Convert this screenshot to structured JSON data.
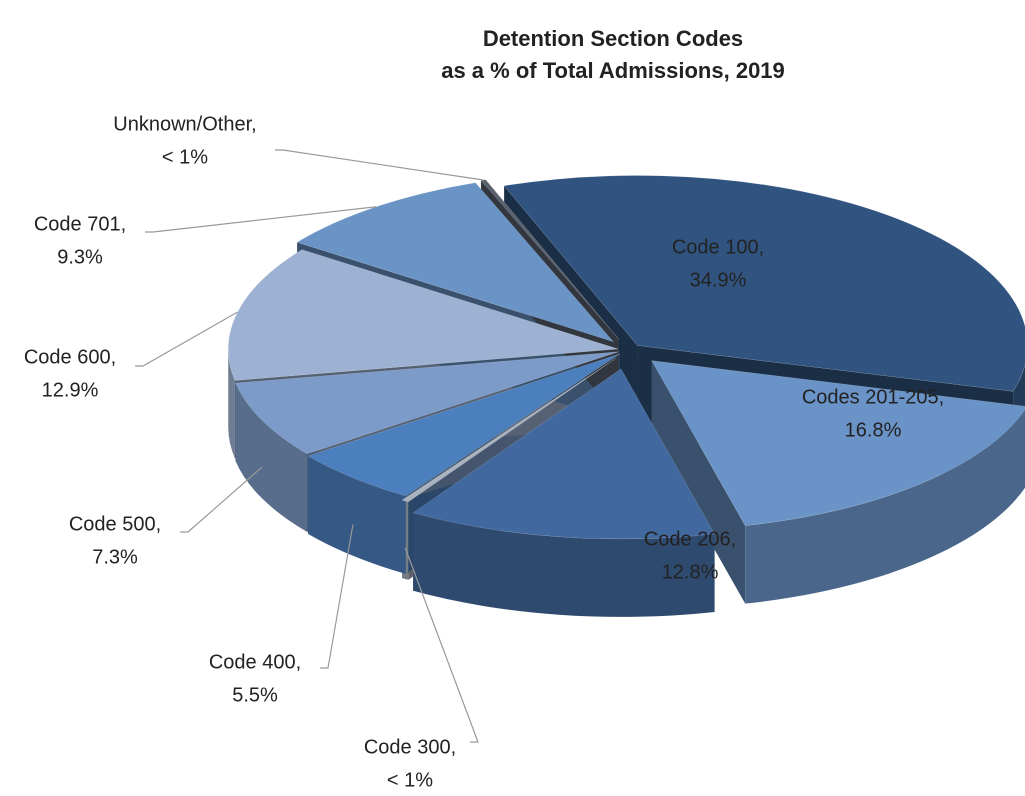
{
  "chart_data": {
    "type": "pie3d",
    "title": [
      "Detention Section Codes",
      "as a % of Total Admissions, 2019"
    ],
    "categories": [
      "Code 100,",
      "Codes 201-205,",
      "Code 206,",
      "Code 300,",
      "Code 400,",
      "Code 500,",
      "Code 600,",
      "Code 701,",
      "Unknown/Other,"
    ],
    "values": [
      34.9,
      16.8,
      12.8,
      0.3,
      5.5,
      7.3,
      12.9,
      9.3,
      0.2
    ],
    "value_labels": [
      "34.9%",
      "16.8%",
      "12.8%",
      "< 1%",
      "5.5%",
      "7.3%",
      "12.9%",
      "9.3%",
      "< 1%"
    ],
    "colors": [
      "#30547f",
      "#6a93c7",
      "#41699f",
      "#a9b3bf",
      "#4c7fbd",
      "#7d9bc8",
      "#9db2d2",
      "#6a93c6",
      "#5a6270"
    ]
  }
}
